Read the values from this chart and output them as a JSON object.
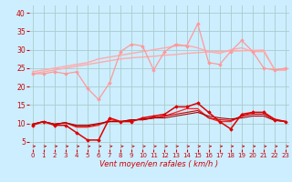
{
  "title": "",
  "xlabel": "Vent moyen/en rafales ( km/h )",
  "background_color": "#cceeff",
  "grid_color": "#aacccc",
  "x": [
    0,
    1,
    2,
    3,
    4,
    5,
    6,
    7,
    8,
    9,
    10,
    11,
    12,
    13,
    14,
    15,
    16,
    17,
    18,
    19,
    20,
    21,
    22,
    23
  ],
  "ylim": [
    3,
    42
  ],
  "xlim": [
    -0.3,
    23.3
  ],
  "series": [
    {
      "y": [
        23.5,
        24.0,
        24.5,
        25.0,
        25.5,
        26.0,
        26.5,
        27.0,
        27.5,
        27.8,
        28.0,
        28.2,
        28.5,
        28.7,
        29.0,
        29.2,
        29.4,
        29.5,
        29.6,
        29.7,
        29.8,
        29.9,
        24.5,
        24.5
      ],
      "color": "#ffaaaa",
      "lw": 1.0,
      "marker": null,
      "zorder": 2
    },
    {
      "y": [
        24.0,
        24.5,
        25.0,
        25.5,
        26.0,
        26.5,
        27.5,
        28.0,
        28.5,
        29.0,
        29.5,
        30.0,
        30.5,
        31.0,
        31.2,
        30.5,
        29.5,
        29.0,
        30.0,
        30.5,
        29.5,
        29.5,
        24.5,
        24.5
      ],
      "color": "#ffaaaa",
      "lw": 1.0,
      "marker": null,
      "zorder": 2
    },
    {
      "y": [
        23.5,
        23.5,
        24.0,
        23.5,
        24.0,
        19.5,
        16.5,
        21.0,
        29.5,
        31.5,
        31.0,
        24.5,
        29.5,
        31.5,
        31.0,
        37.0,
        26.5,
        26.0,
        29.5,
        32.5,
        29.5,
        25.0,
        24.5,
        25.0
      ],
      "color": "#ff9999",
      "lw": 0.9,
      "marker": "D",
      "ms": 1.8,
      "zorder": 3
    },
    {
      "y": [
        9.5,
        10.5,
        9.5,
        9.5,
        7.5,
        5.5,
        5.5,
        11.5,
        10.5,
        10.5,
        11.5,
        12.0,
        12.5,
        14.5,
        14.5,
        15.5,
        13.0,
        10.5,
        8.5,
        12.5,
        13.0,
        13.0,
        11.0,
        10.5
      ],
      "color": "#dd0000",
      "lw": 1.1,
      "marker": "D",
      "ms": 1.8,
      "zorder": 4
    },
    {
      "y": [
        9.8,
        10.5,
        9.8,
        10.2,
        9.0,
        9.0,
        9.5,
        11.0,
        10.5,
        10.8,
        11.2,
        11.5,
        12.0,
        13.0,
        14.0,
        14.0,
        11.5,
        10.5,
        10.5,
        12.0,
        13.0,
        13.0,
        11.2,
        10.5
      ],
      "color": "#ff2222",
      "lw": 0.9,
      "marker": null,
      "zorder": 3
    },
    {
      "y": [
        9.8,
        10.5,
        9.8,
        10.2,
        9.2,
        9.2,
        9.8,
        10.5,
        10.5,
        11.0,
        11.0,
        11.5,
        12.0,
        12.5,
        13.0,
        13.5,
        11.5,
        11.0,
        10.8,
        12.0,
        12.5,
        12.5,
        11.0,
        10.5
      ],
      "color": "#cc0000",
      "lw": 0.8,
      "marker": null,
      "zorder": 3
    },
    {
      "y": [
        9.8,
        10.5,
        9.8,
        10.2,
        9.5,
        9.5,
        10.0,
        10.5,
        10.5,
        11.0,
        11.0,
        11.5,
        11.5,
        12.0,
        12.5,
        13.0,
        12.0,
        11.5,
        11.2,
        11.5,
        12.0,
        12.0,
        10.8,
        10.5
      ],
      "color": "#aa0000",
      "lw": 0.8,
      "marker": null,
      "zorder": 3
    }
  ],
  "yticks": [
    5,
    10,
    15,
    20,
    25,
    30,
    35,
    40
  ],
  "xticks": [
    0,
    1,
    2,
    3,
    4,
    5,
    6,
    7,
    8,
    9,
    10,
    11,
    12,
    13,
    14,
    15,
    16,
    17,
    18,
    19,
    20,
    21,
    22,
    23
  ],
  "xlabel_fontsize": 6,
  "ytick_fontsize": 5.5,
  "xtick_fontsize": 5.0
}
